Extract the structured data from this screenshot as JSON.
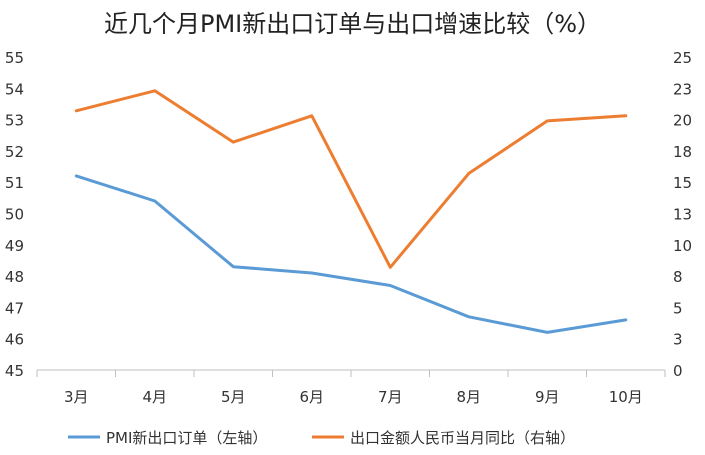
{
  "chart_data": {
    "type": "line",
    "title": "近几个月PMI新出口订单与出口增速比较（%）",
    "categories": [
      "3月",
      "4月",
      "5月",
      "6月",
      "7月",
      "8月",
      "9月",
      "10月"
    ],
    "y_left": {
      "min": 45,
      "max": 55,
      "ticks": [
        "45",
        "46",
        "47",
        "48",
        "49",
        "50",
        "51",
        "52",
        "53",
        "54",
        "55"
      ]
    },
    "y_right": {
      "min": 0,
      "max": 25,
      "ticks": [
        "0",
        "3",
        "5",
        "8",
        "10",
        "13",
        "15",
        "18",
        "20",
        "23",
        "25"
      ]
    },
    "grid": false,
    "legend_position": "bottom",
    "series": [
      {
        "name": "PMI新出口订单（左轴）",
        "axis": "left",
        "color": "#5B9BD5",
        "values": [
          51.2,
          50.4,
          48.3,
          48.1,
          47.7,
          46.7,
          46.2,
          46.6
        ]
      },
      {
        "name": "出口金额人民币当月同比（右轴）",
        "axis": "right",
        "color": "#ED7D31",
        "values": [
          20.7,
          22.3,
          18.2,
          20.3,
          8.2,
          15.7,
          19.9,
          20.3
        ]
      }
    ]
  }
}
